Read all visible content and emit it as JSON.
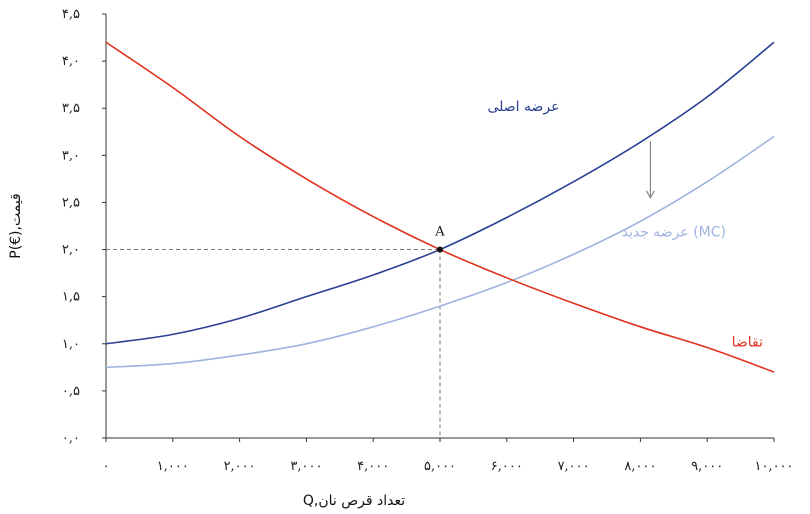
{
  "chart_data": {
    "type": "line",
    "xlabel": "Q,تعداد قرص نان",
    "ylabel": "P(€),قیمت",
    "xlim": [
      0,
      10000
    ],
    "ylim": [
      0,
      4.5
    ],
    "x_ticks": [
      0,
      1000,
      2000,
      3000,
      4000,
      5000,
      6000,
      7000,
      8000,
      9000,
      10000
    ],
    "x_tick_labels": [
      "۰",
      "۱,۰۰۰",
      "۲,۰۰۰",
      "۳,۰۰۰",
      "۴,۰۰۰",
      "۵,۰۰۰",
      "۶,۰۰۰",
      "۷,۰۰۰",
      "۸,۰۰۰",
      "۹,۰۰۰",
      "۱۰,۰۰۰"
    ],
    "y_ticks": [
      0,
      0.5,
      1.0,
      1.5,
      2.0,
      2.5,
      3.0,
      3.5,
      4.0,
      4.5
    ],
    "y_tick_labels": [
      "۰,۰",
      "۰,۵",
      "۱,۰",
      "۱,۵",
      "۲,۰",
      "۲,۵",
      "۳,۰",
      "۳,۵",
      "۴,۰",
      "۴,۵"
    ],
    "grid": false,
    "series": [
      {
        "name": "عرضه اصلی",
        "color": "#2a3f93",
        "x": [
          0,
          1000,
          2000,
          3000,
          4000,
          5000,
          6000,
          7000,
          8000,
          9000,
          10000
        ],
        "y": [
          1.0,
          1.1,
          1.27,
          1.5,
          1.73,
          2.0,
          2.34,
          2.72,
          3.14,
          3.62,
          4.2
        ]
      },
      {
        "name": "عرضه جدید (MC)",
        "color": "#9fb3e0",
        "x": [
          0,
          1000,
          2000,
          3000,
          4000,
          5000,
          6000,
          7000,
          8000,
          9000,
          10000
        ],
        "y": [
          0.75,
          0.79,
          0.88,
          1.0,
          1.18,
          1.4,
          1.65,
          1.95,
          2.3,
          2.72,
          3.2
        ]
      },
      {
        "name": "تقاضا",
        "color": "#e0321c",
        "x": [
          0,
          1000,
          2000,
          3000,
          4000,
          5000,
          6000,
          7000,
          8000,
          9000,
          10000
        ],
        "y": [
          4.2,
          3.72,
          3.2,
          2.75,
          2.35,
          2.0,
          1.7,
          1.43,
          1.18,
          0.96,
          0.7
        ]
      }
    ],
    "points": [
      {
        "label": "A",
        "x": 5000,
        "y": 2.0
      }
    ],
    "arrow": {
      "x": 8150,
      "y_from": 3.15,
      "y_to": 2.55,
      "color": "#888888"
    }
  }
}
